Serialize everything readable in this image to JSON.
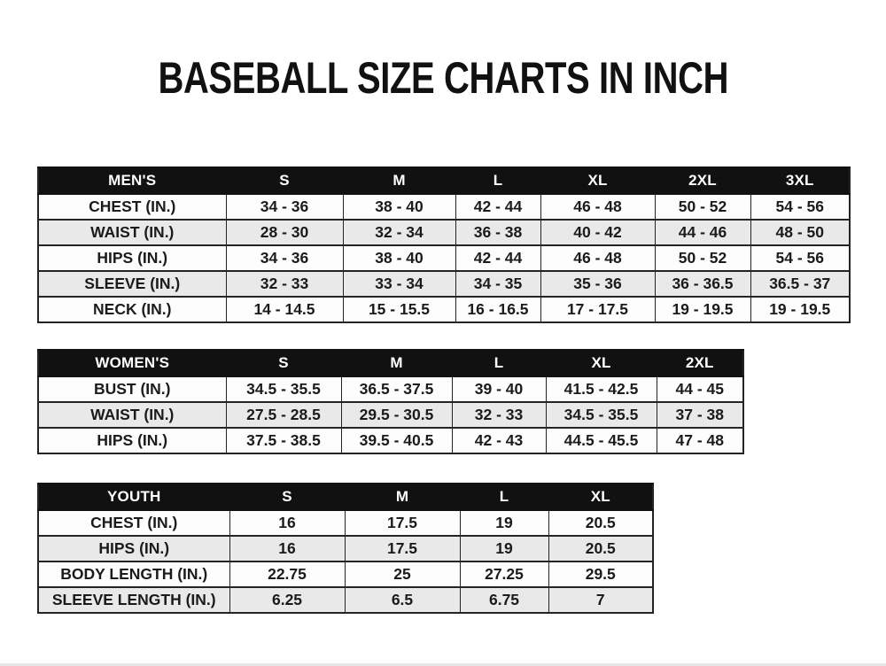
{
  "title": "BASEBALL SIZE CHARTS IN INCH",
  "tables": [
    {
      "name": "mens",
      "header": [
        "MEN'S",
        "S",
        "M",
        "L",
        "XL",
        "2XL",
        "3XL"
      ],
      "rows": [
        [
          "CHEST (IN.)",
          "34 - 36",
          "38 - 40",
          "42 - 44",
          "46 - 48",
          "50 - 52",
          "54 - 56"
        ],
        [
          "WAIST (IN.)",
          "28 - 30",
          "32 - 34",
          "36 - 38",
          "40 - 42",
          "44 - 46",
          "48 - 50"
        ],
        [
          "HIPS (IN.)",
          "34 - 36",
          "38 - 40",
          "42 - 44",
          "46 - 48",
          "50 - 52",
          "54 - 56"
        ],
        [
          "SLEEVE (IN.)",
          "32 - 33",
          "33 - 34",
          "34 - 35",
          "35 - 36",
          "36 - 36.5",
          "36.5 - 37"
        ],
        [
          "NECK (IN.)",
          "14 - 14.5",
          "15 - 15.5",
          "16 - 16.5",
          "17 - 17.5",
          "19 - 19.5",
          "19 - 19.5"
        ]
      ]
    },
    {
      "name": "womens",
      "header": [
        "WOMEN'S",
        "S",
        "M",
        "L",
        "XL",
        "2XL"
      ],
      "rows": [
        [
          "BUST (IN.)",
          "34.5 - 35.5",
          "36.5 - 37.5",
          "39 - 40",
          "41.5 - 42.5",
          "44 - 45"
        ],
        [
          "WAIST (IN.)",
          "27.5 - 28.5",
          "29.5 - 30.5",
          "32 - 33",
          "34.5 - 35.5",
          "37 - 38"
        ],
        [
          "HIPS (IN.)",
          "37.5 - 38.5",
          "39.5 - 40.5",
          "42 - 43",
          "44.5 - 45.5",
          "47 - 48"
        ]
      ]
    },
    {
      "name": "youth",
      "header": [
        "YOUTH",
        "S",
        "M",
        "L",
        "XL"
      ],
      "rows": [
        [
          "CHEST (IN.)",
          "16",
          "17.5",
          "19",
          "20.5"
        ],
        [
          "HIPS (IN.)",
          "16",
          "17.5",
          "19",
          "20.5"
        ],
        [
          "BODY LENGTH (IN.)",
          "22.75",
          "25",
          "27.25",
          "29.5"
        ],
        [
          "SLEEVE LENGTH (IN.)",
          "6.25",
          "6.5",
          "6.75",
          "7"
        ]
      ]
    }
  ],
  "colors": {
    "header_bg": "#111111",
    "header_text": "#ffffff",
    "row_odd_bg": "#fdfdfd",
    "row_even_bg": "#e9e9e9",
    "border": "#242424",
    "text": "#1b1b1b",
    "title": "#111111",
    "page_bg": "#ffffff"
  }
}
